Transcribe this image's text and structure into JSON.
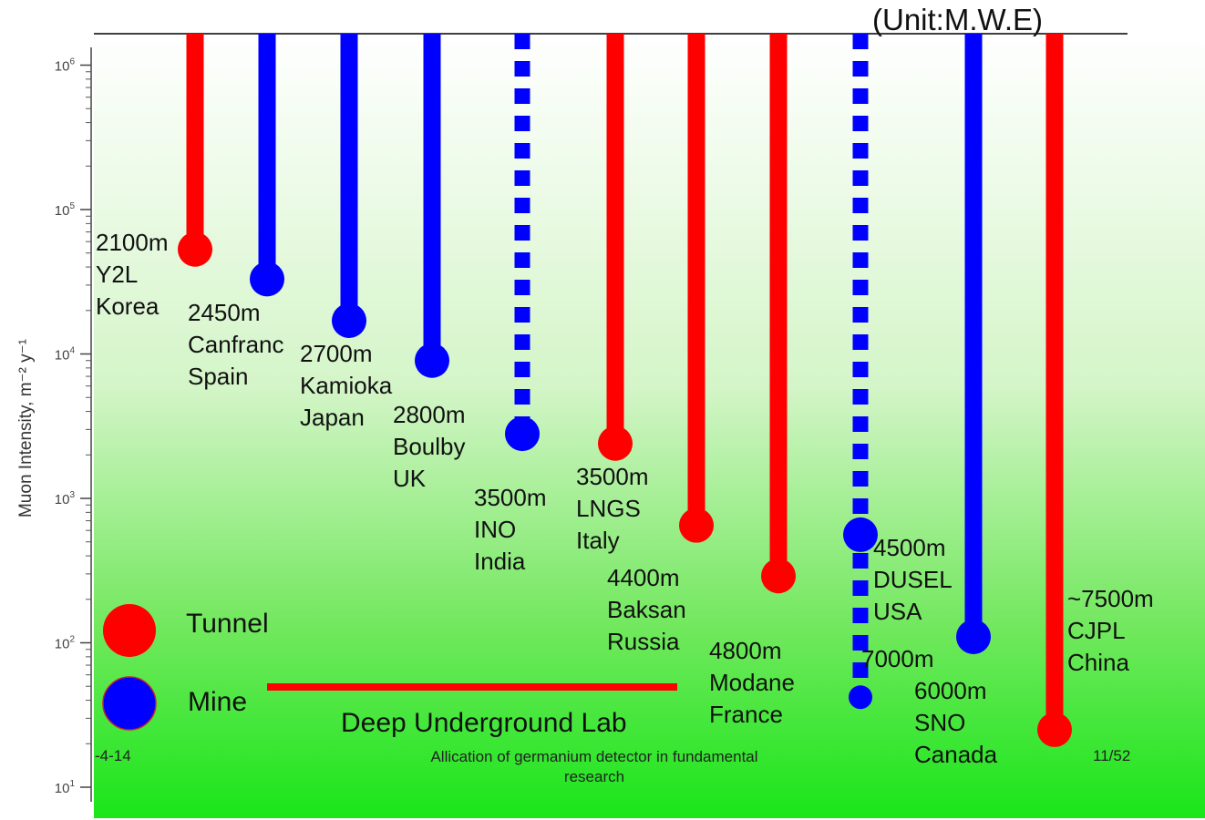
{
  "unit_label": "(Unit:M.W.E)",
  "footer": {
    "left": "-4-14",
    "center": "Allication of germanium detector in fundamental research",
    "right": "11/52"
  },
  "legend": {
    "tunnel_label": "Tunnel",
    "mine_label": "Mine",
    "tunnel_color": "#ff0000",
    "mine_color": "#0000ff"
  },
  "lab_line_label": "Deep Underground Lab",
  "chart_data": {
    "type": "scatter",
    "ylabel": "Muon Intensity, m⁻² y⁻¹",
    "yscale": "log",
    "ylim": [
      10,
      1600000
    ],
    "yticks": [
      {
        "value": 10,
        "base": "10",
        "exp": "1"
      },
      {
        "value": 100,
        "base": "10",
        "exp": "2"
      },
      {
        "value": 1000,
        "base": "10",
        "exp": "3"
      },
      {
        "value": 10000,
        "base": "10",
        "exp": "4"
      },
      {
        "value": 100000,
        "base": "10",
        "exp": "5"
      },
      {
        "value": 1000000,
        "base": "10",
        "exp": "6"
      }
    ],
    "sites": [
      {
        "depth": "2100m",
        "name": "Y2L",
        "country": "Korea",
        "type": "Tunnel",
        "style": "solid",
        "intensity": 53000
      },
      {
        "depth": "2450m",
        "name": "Canfranc",
        "country": "Spain",
        "type": "Mine",
        "style": "solid",
        "intensity": 33000
      },
      {
        "depth": "2700m",
        "name": "Kamioka",
        "country": "Japan",
        "type": "Mine",
        "style": "solid",
        "intensity": 17000
      },
      {
        "depth": "2800m",
        "name": "Boulby",
        "country": "UK",
        "type": "Mine",
        "style": "solid",
        "intensity": 9000
      },
      {
        "depth": "3500m",
        "name": "INO",
        "country": "India",
        "type": "Mine",
        "style": "dashed",
        "intensity": 2800
      },
      {
        "depth": "3500m",
        "name": "LNGS",
        "country": "Italy",
        "type": "Tunnel",
        "style": "solid",
        "intensity": 2400
      },
      {
        "depth": "4400m",
        "name": "Baksan",
        "country": "Russia",
        "type": "Tunnel",
        "style": "solid",
        "intensity": 650
      },
      {
        "depth": "4800m",
        "name": "Modane",
        "country": "France",
        "type": "Tunnel",
        "style": "solid",
        "intensity": 290
      },
      {
        "depth": "4500m",
        "name": "DUSEL",
        "country": "USA",
        "type": "Mine",
        "style": "dashed",
        "intensity": 560,
        "extension": {
          "depth": "7000m",
          "intensity": 42
        }
      },
      {
        "depth": "6000m",
        "name": "SNO",
        "country": "Canada",
        "type": "Mine",
        "style": "solid",
        "intensity": 110
      },
      {
        "depth": "~7500m",
        "name": "CJPL",
        "country": "China",
        "type": "Tunnel",
        "style": "solid",
        "intensity": 25
      }
    ]
  }
}
